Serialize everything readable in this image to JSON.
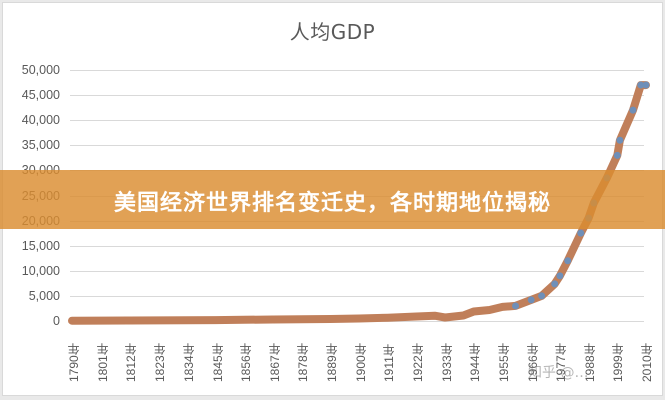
{
  "banner": {
    "text": "美国经济世界排名变迁史，各时期地位揭秘",
    "color": "#db8c30"
  },
  "watermark": {
    "text": "知乎 @…"
  },
  "chart_data": {
    "type": "line",
    "title": "人均GDP",
    "xlabel": "",
    "ylabel": "",
    "ylim": [
      0,
      50000
    ],
    "yticks": [
      "50,000",
      "45,000",
      "40,000",
      "35,000",
      "30,000",
      "25,000",
      "20,000",
      "15,000",
      "10,000",
      "5,000",
      "0"
    ],
    "xticks": [
      "1790年",
      "1801年",
      "1812年",
      "1823年",
      "1834年",
      "1845年",
      "1856年",
      "1867年",
      "1878年",
      "1889年",
      "1900年",
      "1911年",
      "1922年",
      "1933年",
      "1944年",
      "1955年",
      "1966年",
      "1977年",
      "1988年",
      "1999年",
      "2010年"
    ],
    "grid": true,
    "legend": "none",
    "series": [
      {
        "name": "人均GDP",
        "line_color": "#c07f5a",
        "marker_color": "#6f8fb8",
        "x": [
          1790,
          1801,
          1812,
          1823,
          1834,
          1845,
          1856,
          1867,
          1878,
          1889,
          1900,
          1911,
          1922,
          1929,
          1933,
          1940,
          1944,
          1950,
          1955,
          1960,
          1966,
          1970,
          1975,
          1977,
          1980,
          1985,
          1988,
          1990,
          1995,
          1999,
          2000,
          2005,
          2008,
          2010
        ],
        "values": [
          60,
          80,
          100,
          120,
          140,
          180,
          230,
          300,
          350,
          400,
          500,
          650,
          900,
          1050,
          700,
          1100,
          1900,
          2200,
          2800,
          3000,
          4200,
          5000,
          7400,
          9000,
          12000,
          17500,
          20500,
          23500,
          28500,
          33000,
          36000,
          42000,
          47000,
          47000
        ]
      }
    ]
  }
}
